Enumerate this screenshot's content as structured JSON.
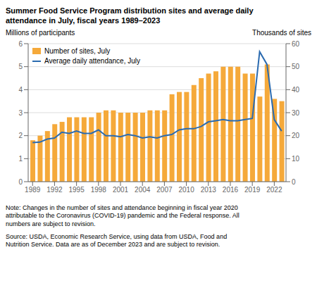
{
  "chart_data": {
    "type": "bar",
    "title": "Summer Food Service Program distribution sites and average daily\nattendance in July, fiscal years 1989–2023",
    "ylabel": "Millions of participants",
    "y2label": "Thousands of sites",
    "annotations": [
      "Note: Changes in the number of sites and attendance beginning in fiscal year 2020\nattributable to the Coronavirus (COVID-19) pandemic and the Federal response. All\nnumbers are subject to revision.",
      "Source: USDA, Economic Research Service, using data from USDA, Food and\nNutrition Service. Data are as of December 2023 and are subject to revision."
    ],
    "x": [
      1989,
      1990,
      1991,
      1992,
      1993,
      1994,
      1995,
      1996,
      1997,
      1998,
      1999,
      2000,
      2001,
      2002,
      2003,
      2004,
      2005,
      2006,
      2007,
      2008,
      2009,
      2010,
      2011,
      2012,
      2013,
      2014,
      2015,
      2016,
      2017,
      2018,
      2019,
      2020,
      2021,
      2022,
      2023
    ],
    "series": [
      {
        "name": "Number of sites, July",
        "type": "bar",
        "axis": "y2",
        "color": "#F5A93A",
        "values": [
          18,
          20,
          22,
          25,
          26,
          28,
          28,
          28,
          28,
          30,
          31,
          31,
          30,
          30,
          30,
          30,
          31,
          31,
          31,
          38,
          39,
          39,
          42,
          45,
          47,
          48,
          50,
          50,
          50,
          47,
          47,
          37,
          51,
          36,
          35
        ]
      },
      {
        "name": "Average daily attendance, July",
        "type": "line",
        "color": "#2B6BB0",
        "values": [
          1.7,
          1.72,
          1.85,
          1.9,
          2.15,
          2.1,
          2.2,
          2.1,
          2.1,
          2.25,
          2.0,
          2.0,
          1.95,
          2.05,
          2.0,
          1.9,
          1.95,
          1.9,
          2.0,
          2.05,
          2.25,
          2.3,
          2.3,
          2.4,
          2.6,
          2.65,
          2.7,
          2.65,
          2.65,
          2.7,
          2.75,
          5.65,
          5.1,
          2.7,
          2.2
        ]
      }
    ],
    "xlim": [
      1988.4,
      2023.6
    ],
    "xticks": [
      1989,
      1992,
      1995,
      1998,
      2001,
      2004,
      2007,
      2010,
      2013,
      2016,
      2019,
      2022
    ],
    "ylim": [
      0,
      6
    ],
    "yticks": [
      0,
      1,
      2,
      3,
      4,
      5,
      6
    ],
    "y2lim": [
      0,
      60
    ],
    "y2ticks": [
      0,
      10,
      20,
      30,
      40,
      50,
      60
    ],
    "grid": true,
    "legend": "upper left"
  }
}
